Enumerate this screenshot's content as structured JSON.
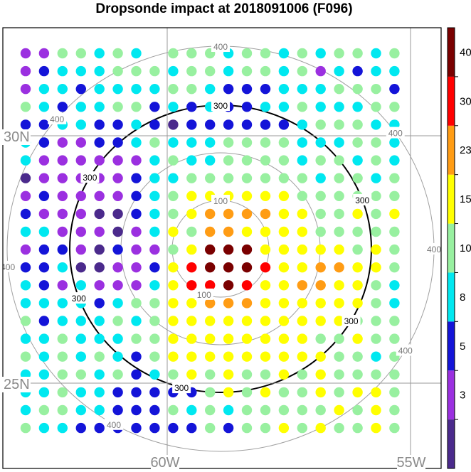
{
  "chart_data": {
    "type": "scatter",
    "title": "Dropsonde impact at 2018091006 (F096)",
    "lat_labels": [
      "30N",
      "25N"
    ],
    "lon_labels": [
      "60W",
      "55W"
    ],
    "range_rings": {
      "values": [
        100,
        200,
        300,
        400
      ],
      "labeled": [
        "100",
        "300",
        "400"
      ],
      "emphasized": 300
    },
    "colorbar": {
      "tick_labels": [
        "3",
        "5",
        "8",
        "10",
        "15",
        "23",
        "30",
        "40"
      ],
      "colors": [
        "#4b2a8c",
        "#9b30e0",
        "#1414d8",
        "#00e8f0",
        "#98f0a0",
        "#ffff00",
        "#ff9c14",
        "#ff0000",
        "#7a0000"
      ]
    },
    "grid": {
      "rows": 22,
      "cols": 21,
      "codes": [
        "8800C0C1000C00C0C00C0",
        "82CCC000C00C00C08C2CC",
        "8CC2CCCC00C222CCC0002",
        "0C2CC002C2C22CC0CCC00",
        "22CC22C2D222222C000CC",
        "C28822C0CCC0000CCC00C",
        "C888888C0CC0000C00C0C",
        "D888882CC0000000C00C0",
        "8288882C0FFFFFF000000",
        "2888DD2C0FEEEEFF00F0F",
        "CC888D8CF0EEFFFF00000",
        "8228D2880FWGWFFFFF0F0",
        "22CDD882FIWWWIFFEEFF0",
        "C28C888CFIIWIFFEEFF0C",
        "CCCC2C00FFEEEFFFFFF0C",
        "02CCC0C0FFFFFFFFFF000",
        "CC0CCC00FFFFFFFF00F00",
        "0C0C0C20FFFFFFFFF00C0",
        "CC00C02C0F0F00F0F0000",
        "CC0CC222220F0F00F0FF0",
        "C00CC2220C0C00000F0F0",
        "0CC22222220200F0F00F0"
      ]
    }
  }
}
